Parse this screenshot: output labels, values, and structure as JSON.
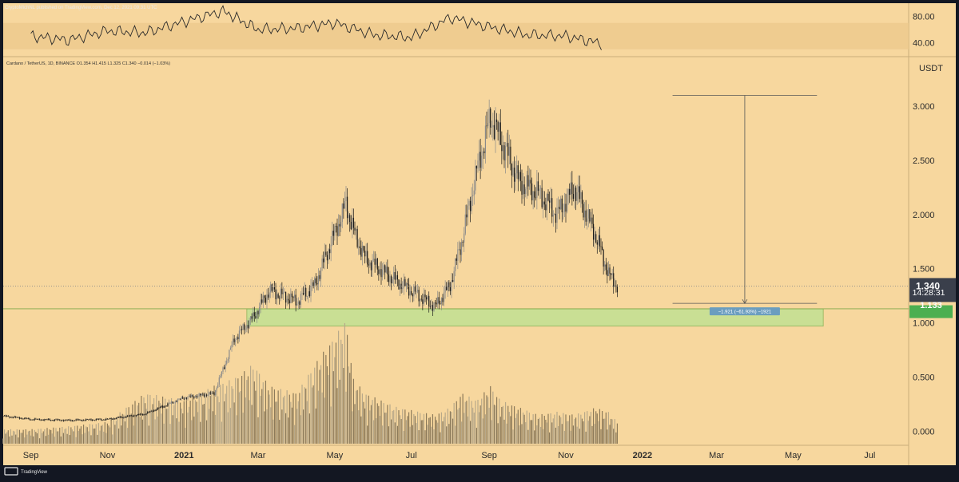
{
  "header": {
    "publisher": "CryptoMichNL published on TradingView.com, Dec 12, 2021 09:31 UTC",
    "symbol_line": "Cardano / TetherUS, 1D, BINANCE  O1.354  H1.415  L1.325  C1.340  −0.014 (−1.03%)"
  },
  "footer": {
    "brand": "TradingView"
  },
  "colors": {
    "chart_bg": "#f7d79e",
    "frame_bg": "#131722",
    "support_zone": "#c9df94",
    "price_label_bg": "#3a3f4b",
    "support_label_bg": "#4caf50",
    "measure_label_bg": "#6b9dbf"
  },
  "chart_data": [
    {
      "type": "line",
      "panel": "oscillator",
      "y_ticks": [
        "80.00",
        "40.00"
      ],
      "ylim": [
        20,
        100
      ],
      "band": [
        30,
        70
      ],
      "x": [
        "2020-09-01",
        "2020-10-01",
        "2020-11-01",
        "2020-12-01",
        "2021-01-01",
        "2021-02-01",
        "2021-03-01",
        "2021-04-01",
        "2021-05-01",
        "2021-06-01",
        "2021-07-01",
        "2021-08-01",
        "2021-09-01",
        "2021-10-01",
        "2021-11-01",
        "2021-12-01"
      ],
      "values": [
        50,
        44,
        58,
        55,
        72,
        88,
        60,
        62,
        70,
        52,
        48,
        78,
        64,
        52,
        50,
        38
      ]
    },
    {
      "type": "candlestick",
      "panel": "price",
      "title": "Cardano / TetherUS, 1D, BINANCE",
      "unit": "USDT",
      "y_ticks": [
        "3.000",
        "2.500",
        "2.000",
        "1.500",
        "1.000",
        "0.500",
        "0.000"
      ],
      "x_ticks": [
        "Sep",
        "Nov",
        "2021",
        "Mar",
        "May",
        "Jul",
        "Sep",
        "Nov",
        "2022",
        "Mar",
        "May",
        "Jul"
      ],
      "x_range": [
        "2020-08-10",
        "2022-08-01"
      ],
      "ylim": [
        -0.13,
        3.45
      ],
      "x": [
        "2020-08-10",
        "2020-09-01",
        "2020-10-01",
        "2020-11-01",
        "2020-12-01",
        "2021-01-01",
        "2021-01-25",
        "2021-02-10",
        "2021-02-25",
        "2021-03-10",
        "2021-04-01",
        "2021-04-15",
        "2021-05-10",
        "2021-05-16",
        "2021-05-25",
        "2021-06-20",
        "2021-07-20",
        "2021-08-01",
        "2021-08-10",
        "2021-08-22",
        "2021-09-02",
        "2021-09-10",
        "2021-09-25",
        "2021-10-10",
        "2021-10-25",
        "2021-11-08",
        "2021-11-25",
        "2021-12-05",
        "2021-12-12"
      ],
      "close": [
        0.14,
        0.11,
        0.1,
        0.11,
        0.16,
        0.31,
        0.35,
        0.85,
        1.05,
        1.3,
        1.2,
        1.35,
        2.1,
        1.85,
        1.6,
        1.38,
        1.15,
        1.35,
        1.75,
        2.4,
        2.9,
        2.7,
        2.3,
        2.2,
        2.0,
        2.25,
        1.8,
        1.45,
        1.34
      ],
      "last_price": "1.340",
      "countdown": "14:28:31",
      "support_level": "1.133",
      "support_zone": [
        0.97,
        1.13
      ],
      "measure": {
        "from": 3.1,
        "to": 1.18,
        "label": "−1.921 (−61.93%) −1921"
      },
      "volume": [
        0.1,
        0.1,
        0.12,
        0.15,
        0.35,
        0.3,
        0.4,
        0.45,
        0.55,
        0.4,
        0.35,
        0.55,
        0.85,
        0.45,
        0.35,
        0.25,
        0.2,
        0.25,
        0.35,
        0.3,
        0.4,
        0.3,
        0.25,
        0.2,
        0.22,
        0.2,
        0.25,
        0.22,
        0.15
      ]
    }
  ]
}
